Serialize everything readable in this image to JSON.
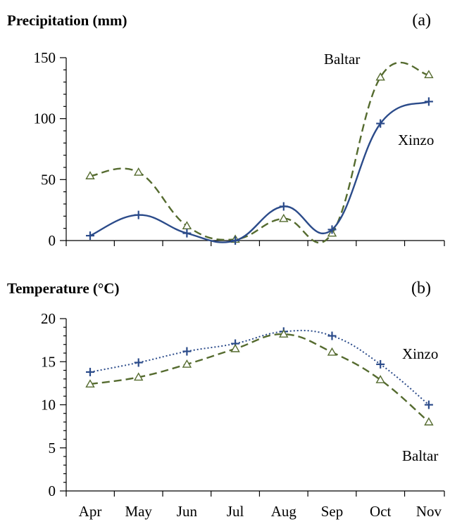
{
  "chart_data": [
    {
      "type": "line",
      "title": "Precipitation (mm)",
      "tag": "(a)",
      "categories": [
        "Apr",
        "May",
        "Jun",
        "Jul",
        "Aug",
        "Sep",
        "Oct",
        "Nov"
      ],
      "ylim": [
        0,
        150
      ],
      "yticks": [
        0,
        50,
        100,
        150
      ],
      "xlabel": "",
      "ylabel": "",
      "grid": false,
      "series": [
        {
          "name": "Baltar",
          "values": [
            53,
            56,
            12,
            1,
            18,
            6,
            134,
            136
          ],
          "color": "#556b2f",
          "marker": "triangle",
          "dash": "dashed"
        },
        {
          "name": "Xinzo",
          "values": [
            4,
            21,
            6,
            0,
            28,
            9,
            96,
            114
          ],
          "color": "#2b4b8a",
          "marker": "plus",
          "dash": "solid"
        }
      ]
    },
    {
      "type": "line",
      "title": "Temperature (°C)",
      "tag": "(b)",
      "categories": [
        "Apr",
        "May",
        "Jun",
        "Jul",
        "Aug",
        "Sep",
        "Oct",
        "Nov"
      ],
      "ylim": [
        0,
        20
      ],
      "yticks": [
        0,
        5,
        10,
        15,
        20
      ],
      "xlabel": "",
      "ylabel": "",
      "grid": false,
      "series": [
        {
          "name": "Xinzo",
          "values": [
            13.8,
            14.9,
            16.2,
            17.1,
            18.5,
            18.0,
            14.7,
            10.0
          ],
          "color": "#2b4b8a",
          "marker": "plus",
          "dash": "dotted"
        },
        {
          "name": "Baltar",
          "values": [
            12.4,
            13.2,
            14.7,
            16.5,
            18.2,
            16.1,
            12.9,
            8.0
          ],
          "color": "#556b2f",
          "marker": "triangle",
          "dash": "dashed"
        }
      ]
    }
  ]
}
